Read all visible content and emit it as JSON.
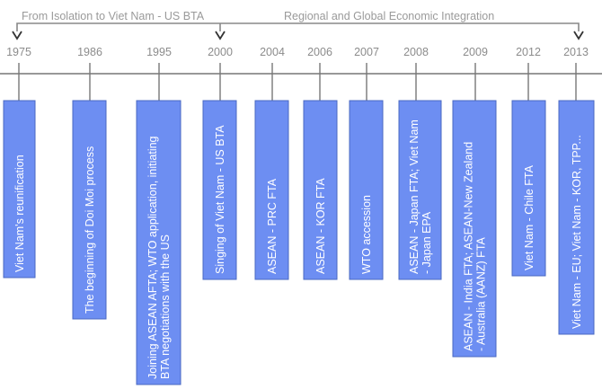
{
  "header": {
    "left_period": "From Isolation to Viet Nam - US BTA",
    "right_period": "Regional and Global Economic Integration"
  },
  "colors": {
    "box_fill": "#6d8ef2",
    "box_stroke": "#4a68c2",
    "line": "#777777",
    "text": "#ffffff"
  },
  "events": [
    {
      "year": "1975",
      "lines": [
        "Viet Nam's reunification"
      ]
    },
    {
      "year": "1986",
      "lines": [
        "The beginning of Doi Moi process"
      ]
    },
    {
      "year": "1995",
      "lines": [
        "Joining ASEAN AFTA; WTO application, initiating",
        "BTA negotiations with the US"
      ]
    },
    {
      "year": "2000",
      "lines": [
        "Singing of Viet Nam - US BTA"
      ]
    },
    {
      "year": "2004",
      "lines": [
        "ASEAN - PRC FTA"
      ]
    },
    {
      "year": "2006",
      "lines": [
        "ASEAN - KOR FTA"
      ]
    },
    {
      "year": "2007",
      "lines": [
        "WTO accession"
      ]
    },
    {
      "year": "2008",
      "lines": [
        "ASEAN - Japan FTA; Viet Nam",
        "- Japan EPA"
      ]
    },
    {
      "year": "2009",
      "lines": [
        "ASEAN - India FTA; ASEAN-New Zealand",
        "- Australia (AANZ) FTA"
      ]
    },
    {
      "year": "2012",
      "lines": [
        "Viet Nam - Chile FTA"
      ]
    },
    {
      "year": "2013",
      "lines": [
        "Viet Nam - EU; Viet Nam - KOR, TPP..."
      ]
    }
  ]
}
